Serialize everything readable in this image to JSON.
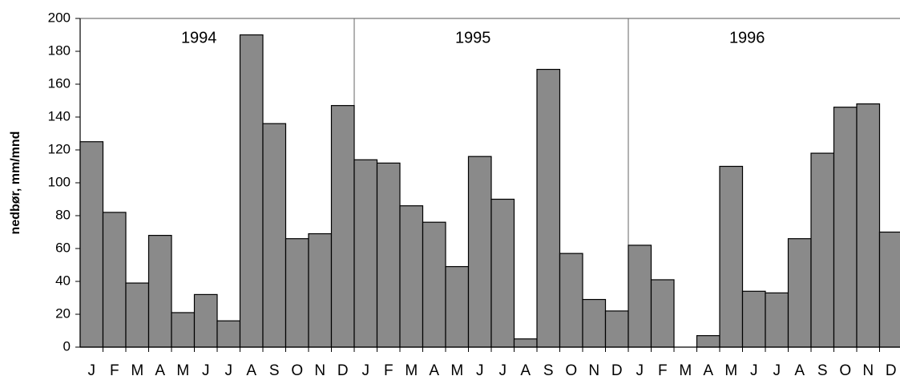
{
  "chart_data": {
    "type": "bar",
    "y_label": "nedbør, mm/mnd",
    "year_labels": [
      "1994",
      "1995",
      "1996"
    ],
    "categories": [
      "J",
      "F",
      "M",
      "A",
      "M",
      "J",
      "J",
      "A",
      "S",
      "O",
      "N",
      "D",
      "J",
      "F",
      "M",
      "A",
      "M",
      "J",
      "J",
      "A",
      "S",
      "O",
      "N",
      "D",
      "J",
      "F",
      "M",
      "A",
      "M",
      "J",
      "J",
      "A",
      "S",
      "O",
      "N",
      "D"
    ],
    "values": [
      125,
      82,
      39,
      68,
      21,
      32,
      16,
      190,
      136,
      66,
      69,
      147,
      114,
      112,
      86,
      76,
      49,
      116,
      90,
      5,
      169,
      57,
      29,
      22,
      62,
      41,
      0,
      7,
      110,
      34,
      33,
      66,
      118,
      146,
      148,
      70
    ],
    "color": "#8a8a8a",
    "ylim": [
      0,
      200
    ],
    "yticks": [
      0,
      20,
      40,
      60,
      80,
      100,
      120,
      140,
      160,
      180,
      200
    ]
  }
}
